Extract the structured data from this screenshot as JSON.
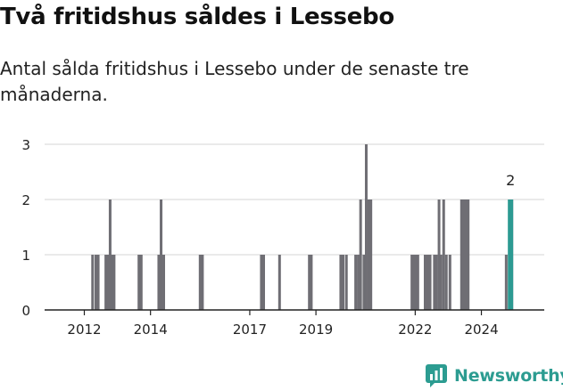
{
  "header": {
    "title": "Två fritidshus såldes i Lessebo",
    "subtitle": "Antal sålda fritidshus i Lessebo under de senaste tre månaderna."
  },
  "brand": {
    "name": "Newsworthy",
    "icon": "newsworthy-chat-chart-icon",
    "color": "#2c9c91"
  },
  "colors": {
    "bar": "#6f6e74",
    "highlight": "#2d9a92",
    "grid": "#d6d6d6",
    "axis": "#222222"
  },
  "chart_data": {
    "type": "bar",
    "title": "Två fritidshus såldes i Lessebo",
    "subtitle": "Antal sålda fritidshus i Lessebo under de senaste tre månaderna.",
    "xlabel": "",
    "ylabel": "",
    "xlim": [
      2010.8,
      2025.9
    ],
    "ylim": [
      0,
      3
    ],
    "y_ticks": [
      0,
      1,
      2,
      3
    ],
    "x_ticks": [
      2012,
      2014,
      2017,
      2019,
      2022,
      2024
    ],
    "grid": true,
    "x": [
      2012.25,
      2012.35,
      2012.42,
      2012.65,
      2012.72,
      2012.78,
      2012.84,
      2012.9,
      2013.65,
      2013.72,
      2014.25,
      2014.32,
      2014.4,
      2015.5,
      2015.57,
      2017.35,
      2017.42,
      2017.9,
      2018.8,
      2018.86,
      2019.75,
      2019.82,
      2019.92,
      2020.2,
      2020.28,
      2020.35,
      2020.45,
      2020.52,
      2020.6,
      2020.66,
      2021.9,
      2021.95,
      2022.02,
      2022.08,
      2022.3,
      2022.38,
      2022.45,
      2022.58,
      2022.64,
      2022.72,
      2022.78,
      2022.86,
      2022.94,
      2023.05,
      2023.4,
      2023.46,
      2023.53,
      2023.6,
      2024.75,
      2024.85,
      2024.92
    ],
    "values": [
      1,
      1,
      1,
      1,
      1,
      2,
      1,
      1,
      1,
      1,
      1,
      2,
      1,
      1,
      1,
      1,
      1,
      1,
      1,
      1,
      1,
      1,
      1,
      1,
      1,
      2,
      1,
      3,
      2,
      2,
      1,
      1,
      1,
      1,
      1,
      1,
      1,
      1,
      1,
      2,
      1,
      2,
      1,
      1,
      2,
      2,
      2,
      2,
      1,
      2,
      2
    ],
    "highlight": {
      "x": 2024.88,
      "value": 2,
      "label": "2"
    }
  }
}
